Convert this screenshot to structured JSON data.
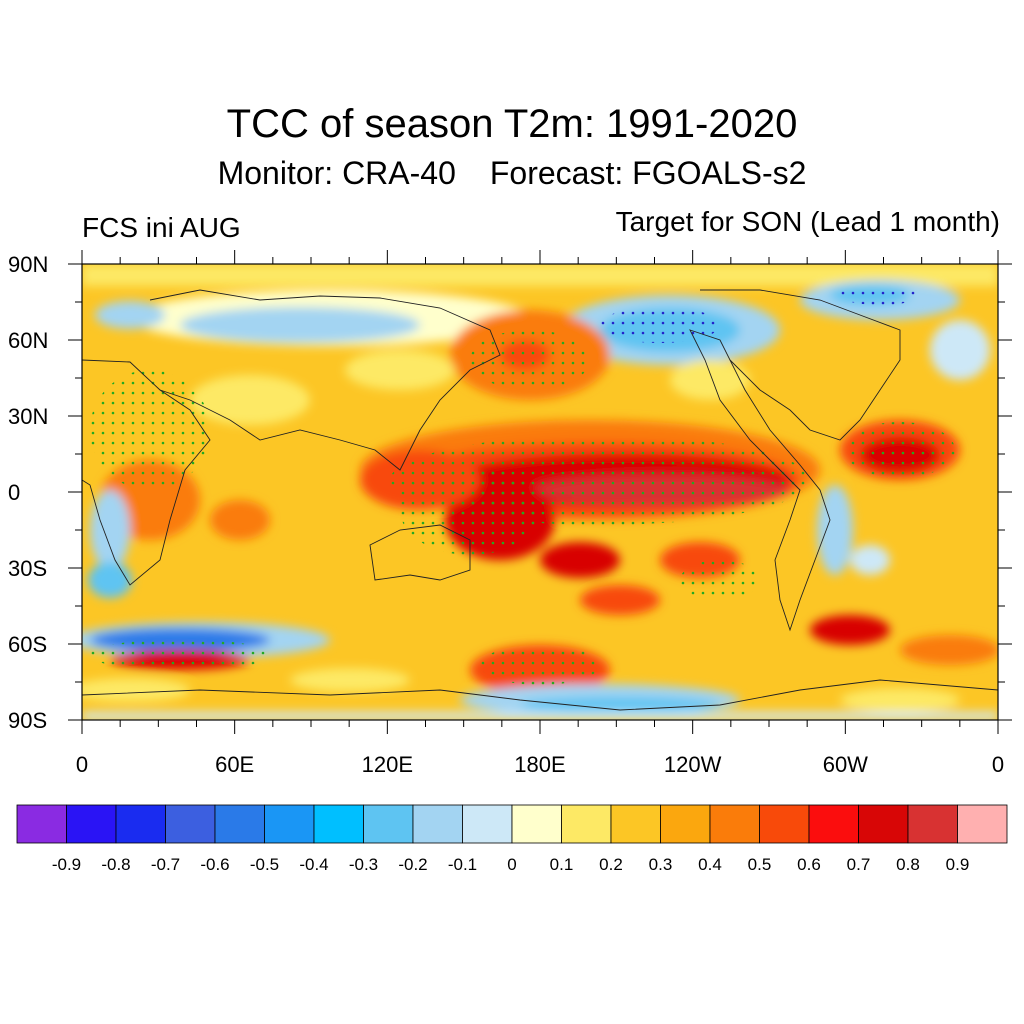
{
  "title": "TCC of season T2m: 1991-2020",
  "subtitle": {
    "monitor": "Monitor: CRA-40",
    "forecast": "Forecast: FGOALS-s2"
  },
  "left_label": "FCS ini AUG",
  "right_label": "Target for SON (Lead 1 month)",
  "lat_ticks": [
    {
      "value": 90,
      "label": "90N"
    },
    {
      "value": 60,
      "label": "60N"
    },
    {
      "value": 30,
      "label": "30N"
    },
    {
      "value": 0,
      "label": "0"
    },
    {
      "value": -30,
      "label": "30S"
    },
    {
      "value": -60,
      "label": "60S"
    },
    {
      "value": -90,
      "label": "90S"
    }
  ],
  "lon_ticks": [
    {
      "value": 0,
      "label": "0"
    },
    {
      "value": 60,
      "label": "60E"
    },
    {
      "value": 120,
      "label": "120E"
    },
    {
      "value": 180,
      "label": "180E"
    },
    {
      "value": 240,
      "label": "120W"
    },
    {
      "value": 300,
      "label": "60W"
    },
    {
      "value": 360,
      "label": "0"
    }
  ],
  "colorbar": {
    "colors": [
      "#8a2be2",
      "#2a14f5",
      "#1a2cf0",
      "#3c5fe0",
      "#2a7ae8",
      "#1a96f5",
      "#00bfff",
      "#5ec4f2",
      "#a3d4f2",
      "#cde8f7",
      "#ffffcc",
      "#fde965",
      "#fcc625",
      "#fba70e",
      "#fa7c0a",
      "#f84a0a",
      "#fb0d0d",
      "#d80606",
      "#d83232",
      "#ffb0b0"
    ],
    "labels": [
      "-0.9",
      "-0.8",
      "-0.7",
      "-0.6",
      "-0.5",
      "-0.4",
      "-0.3",
      "-0.2",
      "-0.1",
      "0",
      "0.1",
      "0.2",
      "0.3",
      "0.4",
      "0.5",
      "0.6",
      "0.7",
      "0.8",
      "0.9"
    ]
  }
}
